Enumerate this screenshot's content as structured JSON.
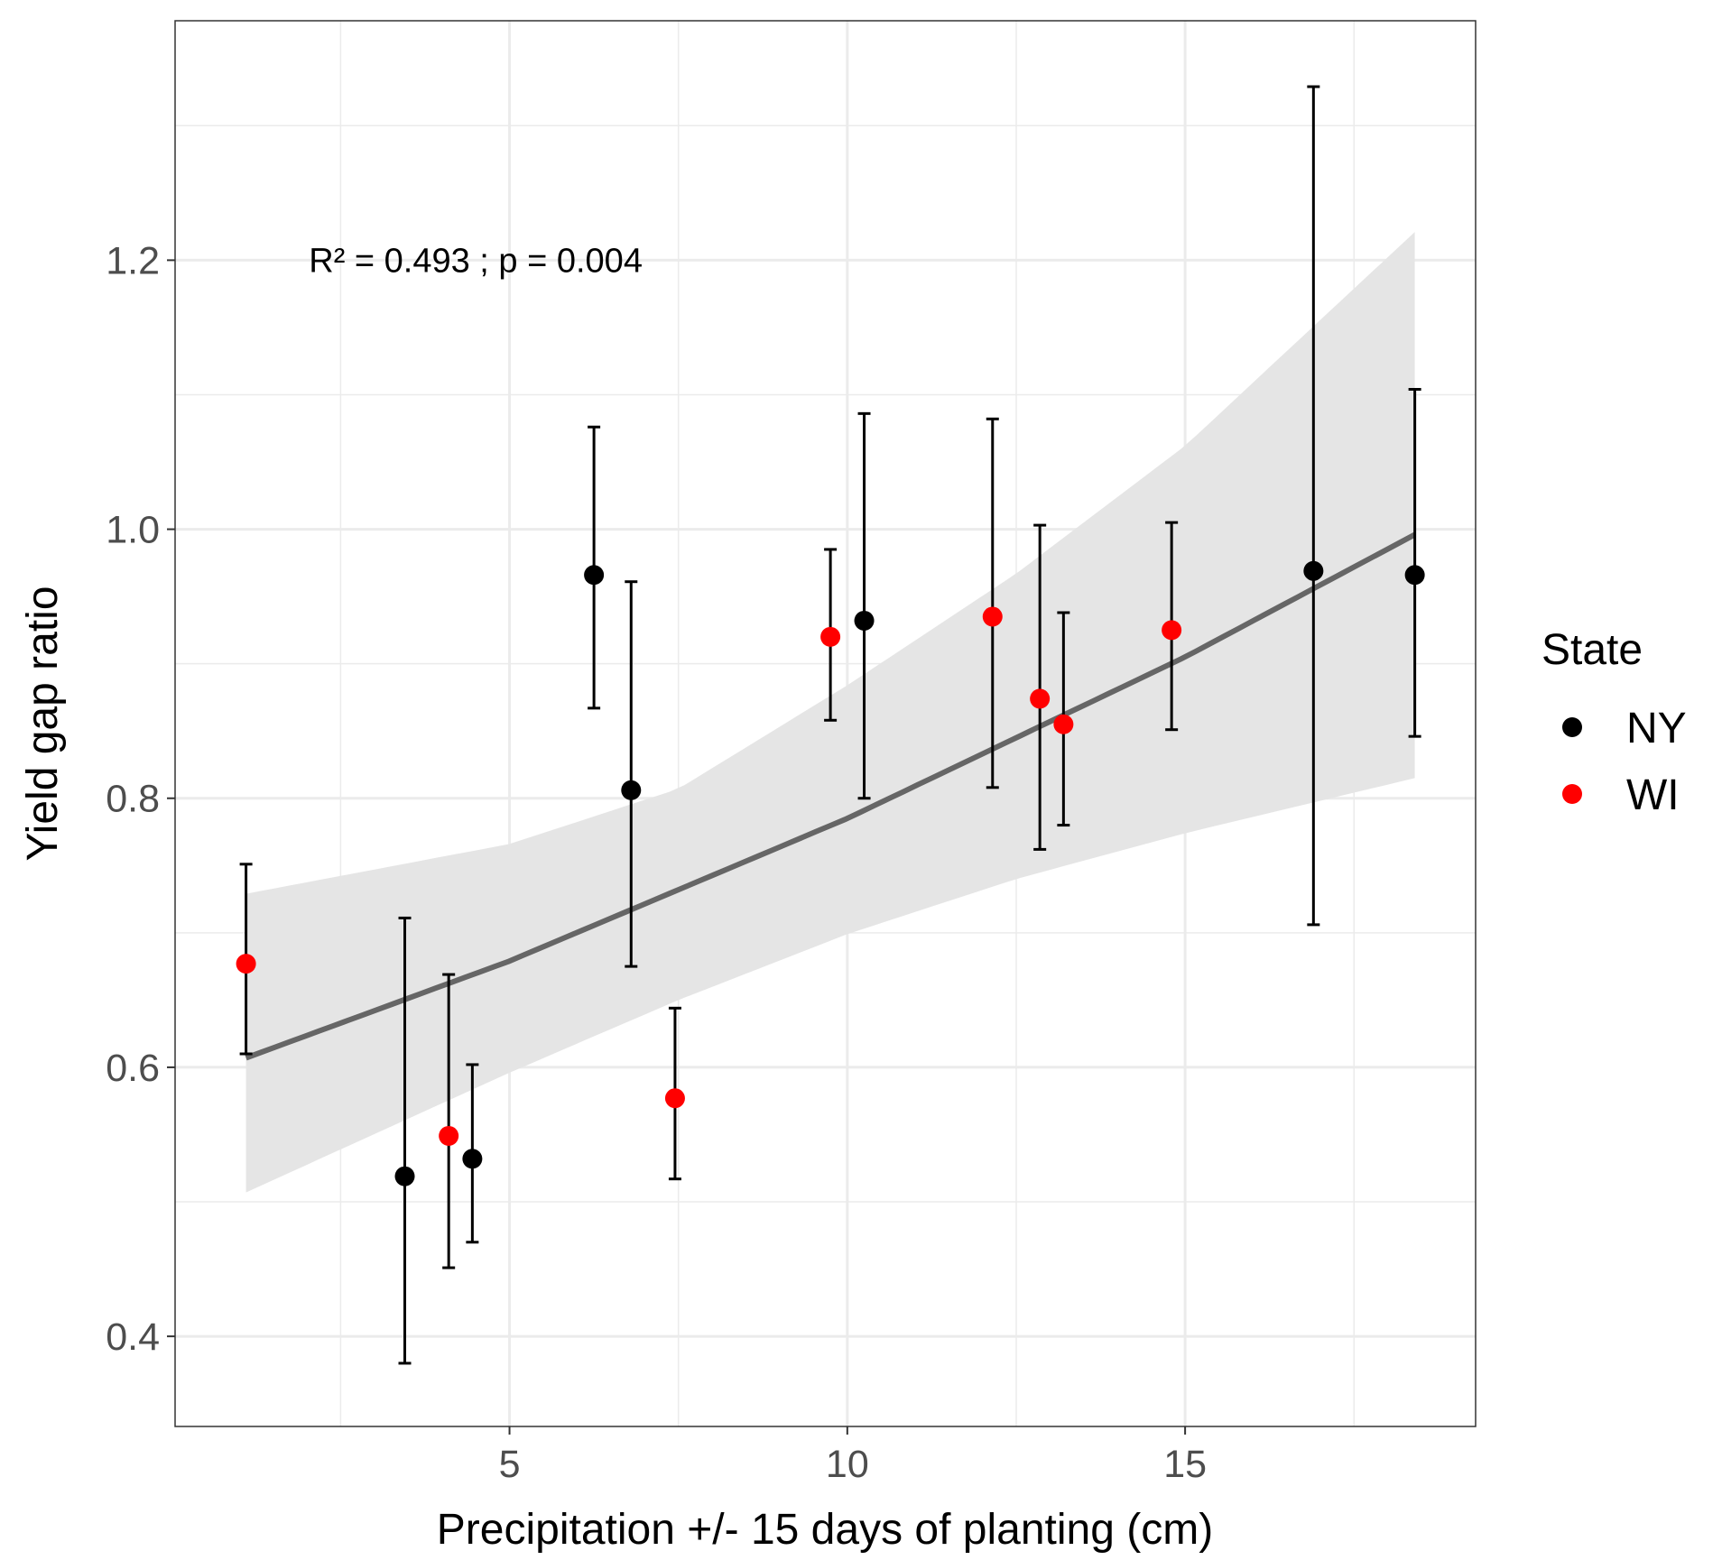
{
  "chart_data": {
    "type": "scatter",
    "title": "",
    "xlabel": "Precipitation +/- 15 days of planting (cm)",
    "ylabel": "Yield gap ratio",
    "xlim": [
      0.05,
      19.3
    ],
    "ylim": [
      0.333,
      1.378
    ],
    "x_ticks": [
      5,
      10,
      15
    ],
    "x_minor_ticks": [
      2.5,
      7.5,
      12.5,
      17.5
    ],
    "y_ticks": [
      0.4,
      0.6,
      0.8,
      1.0,
      1.2
    ],
    "y_minor_ticks": [
      0.5,
      0.7,
      0.9,
      1.1,
      1.3
    ],
    "x_tick_labels": [
      "5",
      "10",
      "15"
    ],
    "y_tick_labels": [
      "0.4",
      "0.6",
      "0.8",
      "1.0",
      "1.2"
    ],
    "grid": true,
    "legend": {
      "title": "State",
      "position": "right",
      "entries": [
        {
          "label": "NY",
          "color": "#000000"
        },
        {
          "label": "WI",
          "color": "#ff0000"
        }
      ]
    },
    "annotation": "R² = 0.493 ; p = 0.004",
    "annotation_pos": {
      "x": 4.5,
      "y": 1.2
    },
    "series": [
      {
        "name": "NY",
        "color": "#000000",
        "points": [
          {
            "x": 3.45,
            "y": 0.519,
            "ymin": 0.38,
            "ymax": 0.711
          },
          {
            "x": 4.45,
            "y": 0.532,
            "ymin": 0.47,
            "ymax": 0.602
          },
          {
            "x": 6.25,
            "y": 0.966,
            "ymin": 0.867,
            "ymax": 1.076
          },
          {
            "x": 6.8,
            "y": 0.806,
            "ymin": 0.675,
            "ymax": 0.961
          },
          {
            "x": 10.25,
            "y": 0.932,
            "ymin": 0.8,
            "ymax": 1.086
          },
          {
            "x": 16.9,
            "y": 0.969,
            "ymin": 0.706,
            "ymax": 1.329
          },
          {
            "x": 18.4,
            "y": 0.966,
            "ymin": 0.846,
            "ymax": 1.104
          }
        ]
      },
      {
        "name": "WI",
        "color": "#ff0000",
        "points": [
          {
            "x": 1.1,
            "y": 0.677,
            "ymin": 0.61,
            "ymax": 0.751
          },
          {
            "x": 4.1,
            "y": 0.549,
            "ymin": 0.451,
            "ymax": 0.669
          },
          {
            "x": 7.45,
            "y": 0.577,
            "ymin": 0.517,
            "ymax": 0.644
          },
          {
            "x": 9.75,
            "y": 0.92,
            "ymin": 0.858,
            "ymax": 0.985
          },
          {
            "x": 12.15,
            "y": 0.935,
            "ymin": 0.808,
            "ymax": 1.082
          },
          {
            "x": 12.85,
            "y": 0.874,
            "ymin": 0.762,
            "ymax": 1.003
          },
          {
            "x": 13.2,
            "y": 0.855,
            "ymin": 0.78,
            "ymax": 0.938
          },
          {
            "x": 14.8,
            "y": 0.925,
            "ymin": 0.851,
            "ymax": 1.005
          }
        ]
      }
    ],
    "fit": {
      "type": "exponential",
      "color": "#666666",
      "band_color": "#e5e5e5",
      "x_start": 1.1,
      "x_end": 18.4,
      "line": [
        {
          "x": 1.1,
          "y": 0.607
        },
        {
          "x": 5.0,
          "y": 0.679
        },
        {
          "x": 10.0,
          "y": 0.785
        },
        {
          "x": 15.0,
          "y": 0.905
        },
        {
          "x": 18.4,
          "y": 0.996
        }
      ],
      "band": [
        {
          "x": 1.1,
          "lo": 0.507,
          "hi": 0.729
        },
        {
          "x": 5.0,
          "lo": 0.596,
          "hi": 0.766
        },
        {
          "x": 7.5,
          "lo": 0.65,
          "hi": 0.807
        },
        {
          "x": 10.0,
          "lo": 0.699,
          "hi": 0.884
        },
        {
          "x": 12.5,
          "lo": 0.74,
          "hi": 0.967
        },
        {
          "x": 15.0,
          "lo": 0.774,
          "hi": 1.062
        },
        {
          "x": 18.4,
          "lo": 0.815,
          "hi": 1.221
        }
      ]
    }
  }
}
